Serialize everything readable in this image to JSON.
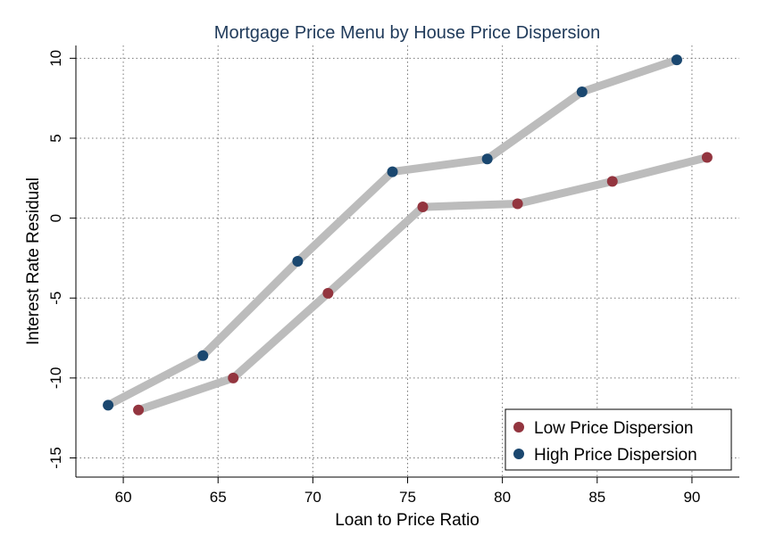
{
  "chart_data": {
    "type": "line",
    "title": "Mortgage Price Menu by House Price Dispersion",
    "xlabel": "Loan to Price Ratio",
    "ylabel": "Interest Rate Residual",
    "xlim": [
      57.5,
      92.5
    ],
    "ylim": [
      -16.2,
      10.8
    ],
    "xticks": [
      60,
      65,
      70,
      75,
      80,
      85,
      90
    ],
    "yticks": [
      -15,
      -10,
      -5,
      0,
      5,
      10
    ],
    "grid": true,
    "legend_position": "bottom-right",
    "series": [
      {
        "name": "Low Price Dispersion",
        "color": "#93353f",
        "x": [
          60.8,
          65.8,
          70.8,
          75.8,
          80.8,
          85.8,
          90.8
        ],
        "y": [
          -12.0,
          -10.0,
          -4.7,
          0.7,
          0.9,
          2.3,
          3.8
        ]
      },
      {
        "name": "High Price Dispersion",
        "color": "#1a476f",
        "x": [
          59.2,
          64.2,
          69.2,
          74.2,
          79.2,
          84.2,
          89.2
        ],
        "y": [
          -11.7,
          -8.6,
          -2.7,
          2.9,
          3.7,
          7.9,
          9.9
        ]
      }
    ],
    "band_color": "#bcbcbc"
  }
}
